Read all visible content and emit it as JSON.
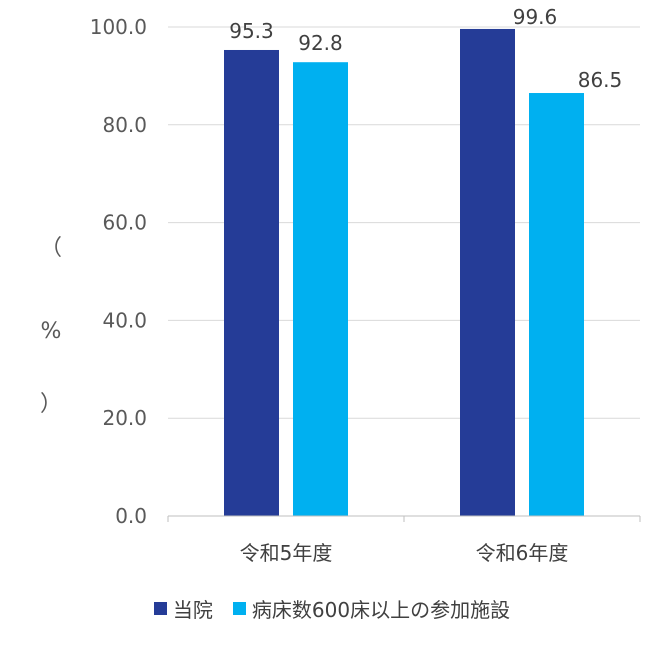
{
  "chart_data": {
    "type": "bar",
    "categories": [
      "令和5年度",
      "令和6年度"
    ],
    "series": [
      {
        "name": "当院",
        "values": [
          95.3,
          99.6
        ],
        "color": "#253C97",
        "labels": [
          "95.3",
          "99.6"
        ]
      },
      {
        "name": "病床数600床以上の参加施設",
        "values": [
          92.8,
          86.5
        ],
        "color": "#00B0F0",
        "labels": [
          "92.8",
          "86.5"
        ]
      }
    ],
    "ylabel": [
      "（",
      "%",
      "）"
    ],
    "ylim": [
      0,
      100
    ],
    "yticks": [
      0,
      20,
      40,
      60,
      80,
      100
    ],
    "ytick_labels": [
      "0.0",
      "20.0",
      "40.0",
      "60.0",
      "80.0",
      "100.0"
    ],
    "grid": true,
    "legend_position": "bottom"
  }
}
